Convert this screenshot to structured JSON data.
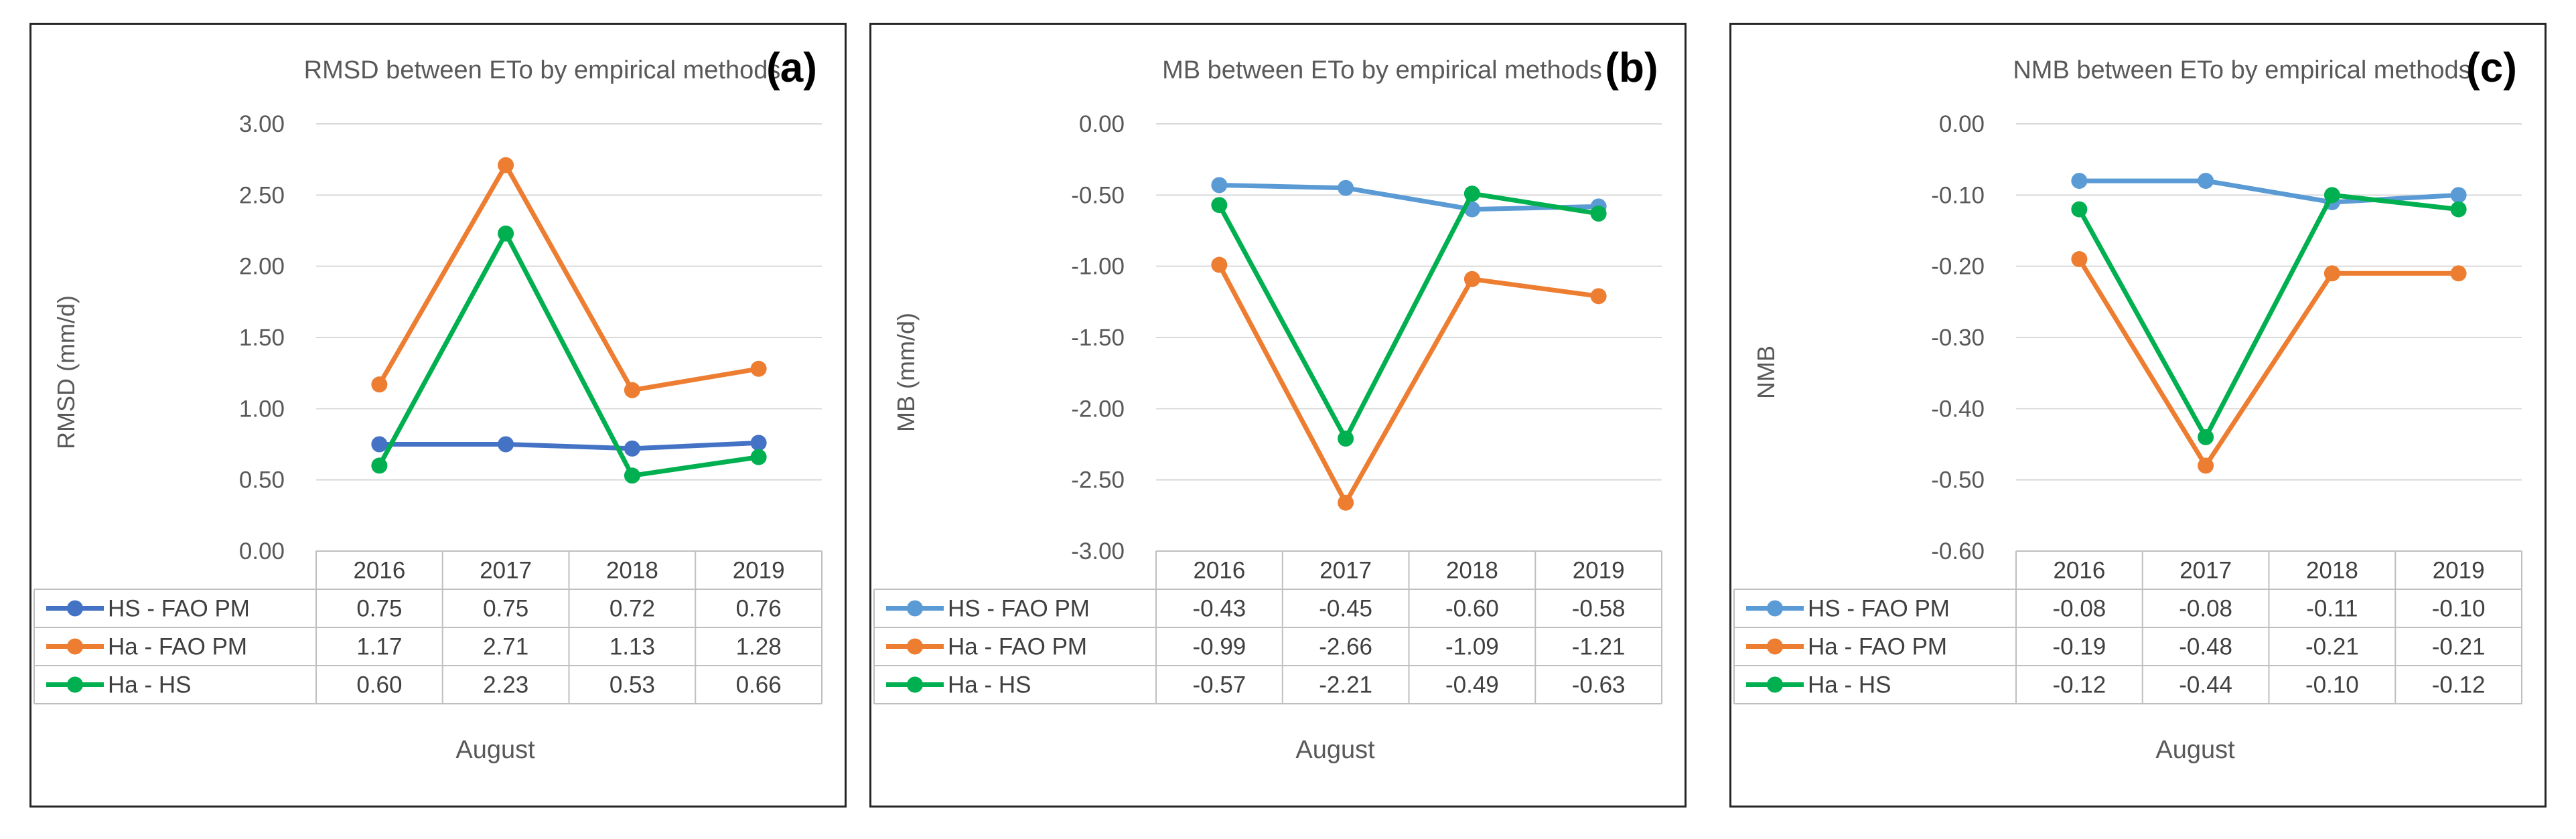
{
  "chart_data": [
    {
      "type": "line",
      "panel_letter": "(a)",
      "title": "RMSD between ETo by empirical methods",
      "xlabel": "August",
      "ylabel": "RMSD (mm/d)",
      "ylim": [
        0,
        3
      ],
      "y_tick_labels": [
        "3.00",
        "2.50",
        "2.00",
        "1.50",
        "1.00",
        "0.50",
        "0.00"
      ],
      "grid": true,
      "legend": "data-table",
      "categories": [
        "2016",
        "2017",
        "2018",
        "2019"
      ],
      "series": [
        {
          "name": "HS - FAO PM",
          "color": "#4472C4",
          "values": [
            0.75,
            0.75,
            0.72,
            0.76
          ],
          "labels": [
            "0.75",
            "0.75",
            "0.72",
            "0.76"
          ]
        },
        {
          "name": "Ha - FAO PM",
          "color": "#ED7D31",
          "values": [
            1.17,
            2.71,
            1.13,
            1.28
          ],
          "labels": [
            "1.17",
            "2.71",
            "1.13",
            "1.28"
          ]
        },
        {
          "name": "Ha - HS",
          "color": "#00B050",
          "values": [
            0.6,
            2.23,
            0.53,
            0.66
          ],
          "labels": [
            "0.60",
            "2.23",
            "0.53",
            "0.66"
          ]
        }
      ]
    },
    {
      "type": "line",
      "panel_letter": "(b)",
      "title": "MB between ETo by empirical methods",
      "xlabel": "August",
      "ylabel": "MB (mm/d)",
      "ylim": [
        -3,
        0
      ],
      "y_tick_labels": [
        "0.00",
        "-0.50",
        "-1.00",
        "-1.50",
        "-2.00",
        "-2.50",
        "-3.00"
      ],
      "grid": true,
      "legend": "data-table",
      "categories": [
        "2016",
        "2017",
        "2018",
        "2019"
      ],
      "series": [
        {
          "name": "HS - FAO PM",
          "color": "#5B9BD5",
          "values": [
            -0.43,
            -0.45,
            -0.6,
            -0.58
          ],
          "labels": [
            "-0.43",
            "-0.45",
            "-0.60",
            "-0.58"
          ]
        },
        {
          "name": "Ha - FAO PM",
          "color": "#ED7D31",
          "values": [
            -0.99,
            -2.66,
            -1.09,
            -1.21
          ],
          "labels": [
            "-0.99",
            "-2.66",
            "-1.09",
            "-1.21"
          ]
        },
        {
          "name": "Ha - HS",
          "color": "#00B050",
          "values": [
            -0.57,
            -2.21,
            -0.49,
            -0.63
          ],
          "labels": [
            "-0.57",
            "-2.21",
            "-0.49",
            "-0.63"
          ]
        }
      ]
    },
    {
      "type": "line",
      "panel_letter": "(c)",
      "title": "NMB between ETo by empirical methods",
      "xlabel": "August",
      "ylabel": "NMB",
      "ylim": [
        -0.6,
        0
      ],
      "y_tick_labels": [
        "0.00",
        "-0.10",
        "-0.20",
        "-0.30",
        "-0.40",
        "-0.50",
        "-0.60"
      ],
      "grid": true,
      "legend": "data-table",
      "categories": [
        "2016",
        "2017",
        "2018",
        "2019"
      ],
      "series": [
        {
          "name": "HS - FAO PM",
          "color": "#5B9BD5",
          "values": [
            -0.08,
            -0.08,
            -0.11,
            -0.1
          ],
          "labels": [
            "-0.08",
            "-0.08",
            "-0.11",
            "-0.10"
          ]
        },
        {
          "name": "Ha - FAO PM",
          "color": "#ED7D31",
          "values": [
            -0.19,
            -0.48,
            -0.21,
            -0.21
          ],
          "labels": [
            "-0.19",
            "-0.48",
            "-0.21",
            "-0.21"
          ]
        },
        {
          "name": "Ha - HS",
          "color": "#00B050",
          "values": [
            -0.12,
            -0.44,
            -0.1,
            -0.12
          ],
          "labels": [
            "-0.12",
            "-0.44",
            "-0.10",
            "-0.12"
          ]
        }
      ]
    }
  ]
}
